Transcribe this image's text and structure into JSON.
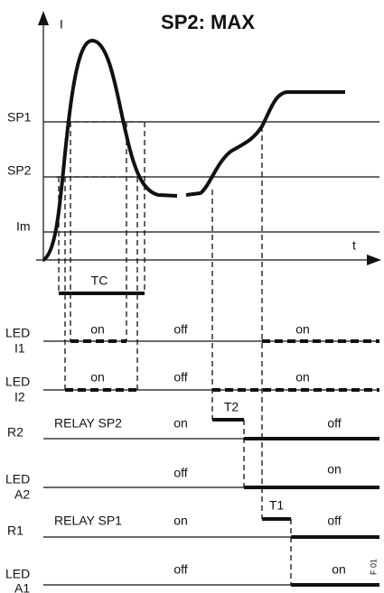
{
  "title": "SP2: MAX",
  "axes": {
    "y_label": "I",
    "x_label": "t"
  },
  "levels": [
    "SP1",
    "SP2",
    "Im"
  ],
  "tc": "TC",
  "rows": [
    {
      "label": [
        "LED",
        "I1"
      ],
      "states": [
        "on",
        "off",
        "on"
      ]
    },
    {
      "label": [
        "LED",
        "I2"
      ],
      "states": [
        "on",
        "off",
        "on"
      ]
    },
    {
      "label": [
        "R2"
      ],
      "name": "RELAY SP2",
      "states": [
        "on",
        "off"
      ],
      "timer": "T2"
    },
    {
      "label": [
        "LED",
        "A2"
      ],
      "states": [
        "off",
        "on"
      ]
    },
    {
      "label": [
        "R1"
      ],
      "name": "RELAY SP1",
      "states": [
        "on",
        "off"
      ],
      "timer": "T1"
    },
    {
      "label": [
        "LED",
        "A1"
      ],
      "states": [
        "off",
        "on"
      ]
    }
  ],
  "figure_code": "F 01"
}
